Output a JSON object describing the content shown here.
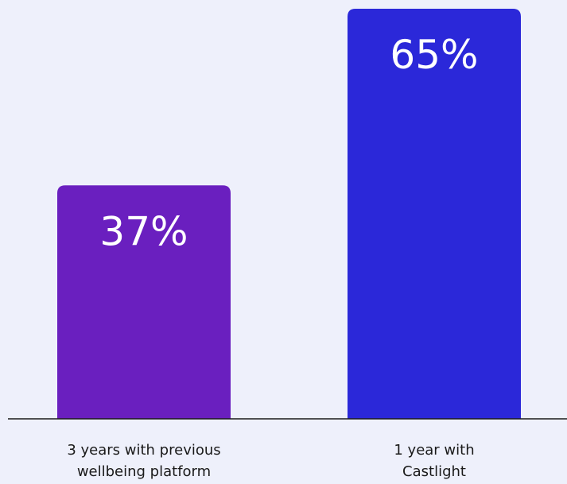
{
  "chart_data": {
    "type": "bar",
    "title": "",
    "xlabel": "",
    "ylabel": "",
    "ylim": [
      0,
      70
    ],
    "grid": false,
    "categories": [
      [
        "3 years with previous",
        "wellbeing platform"
      ],
      [
        "1 year with",
        "Castlight"
      ]
    ],
    "values": [
      37,
      65
    ],
    "value_labels": [
      "37%",
      "65%"
    ],
    "colors": [
      "#6a1fbf",
      "#2b28d9"
    ],
    "axis_color": "#1a1a1a"
  }
}
